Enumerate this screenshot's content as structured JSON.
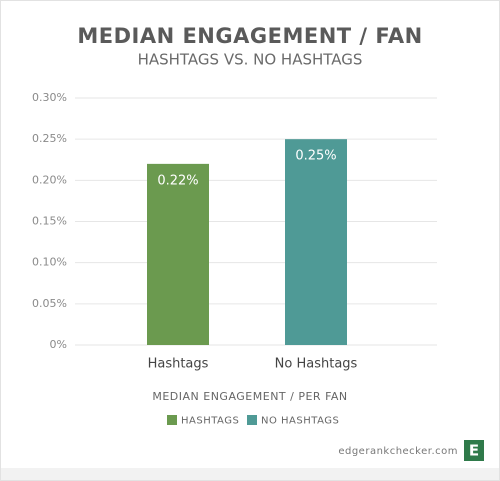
{
  "chart_data": {
    "type": "bar",
    "title": "MEDIAN ENGAGEMENT / FAN",
    "subtitle": "HASHTAGS VS. NO HASHTAGS",
    "x_label": "MEDIAN ENGAGEMENT / PER FAN",
    "categories": [
      "Hashtags",
      "No Hashtags"
    ],
    "series": [
      {
        "name": "HASHTAGS",
        "color": "#6b9a4f",
        "values": [
          0.22,
          null
        ],
        "value_labels": [
          "0.22%",
          null
        ]
      },
      {
        "name": "NO HASHTAGS",
        "color": "#4f9a96",
        "values": [
          null,
          0.25
        ],
        "value_labels": [
          null,
          "0.25%"
        ]
      }
    ],
    "ylim": [
      0,
      0.3
    ],
    "yticks": [
      {
        "value": 0,
        "label": "0%"
      },
      {
        "value": 0.05,
        "label": "0.05%"
      },
      {
        "value": 0.1,
        "label": "0.10%"
      },
      {
        "value": 0.15,
        "label": "0.15%"
      },
      {
        "value": 0.2,
        "label": "0.20%"
      },
      {
        "value": 0.25,
        "label": "0.25%"
      },
      {
        "value": 0.3,
        "label": "0.30%"
      }
    ],
    "grid": true,
    "watermark": "edgerankchecker.com",
    "logo": "E"
  }
}
